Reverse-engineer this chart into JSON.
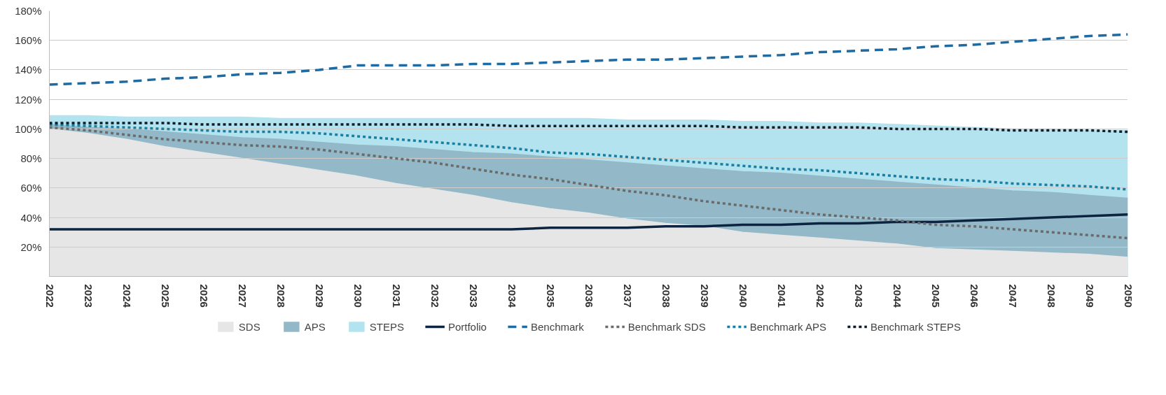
{
  "chart_data": {
    "type": "area",
    "x": [
      2022,
      2023,
      2024,
      2025,
      2026,
      2027,
      2028,
      2029,
      2030,
      2031,
      2032,
      2033,
      2034,
      2035,
      2036,
      2037,
      2038,
      2039,
      2040,
      2041,
      2042,
      2043,
      2044,
      2045,
      2046,
      2047,
      2048,
      2049,
      2050
    ],
    "xlim": [
      2022,
      2050
    ],
    "xticks": [
      2022,
      2023,
      2024,
      2025,
      2026,
      2027,
      2028,
      2029,
      2030,
      2031,
      2032,
      2033,
      2034,
      2035,
      2036,
      2037,
      2038,
      2039,
      2040,
      2041,
      2042,
      2043,
      2044,
      2045,
      2046,
      2047,
      2048,
      2049,
      2050
    ],
    "ylim": [
      0,
      180
    ],
    "yticks": [
      {
        "value": 20,
        "label": "20%"
      },
      {
        "value": 40,
        "label": "40%"
      },
      {
        "value": 60,
        "label": "60%"
      },
      {
        "value": 80,
        "label": "80%"
      },
      {
        "value": 100,
        "label": "100%"
      },
      {
        "value": 120,
        "label": "120%"
      },
      {
        "value": 140,
        "label": "140%"
      },
      {
        "value": 160,
        "label": "160%"
      },
      {
        "value": 180,
        "label": "180%"
      }
    ],
    "grid": "y",
    "legend": "bottom",
    "series": [
      {
        "name": "SDS",
        "color": "#e6e6e6",
        "values": [
          100,
          97,
          93,
          88,
          84,
          80,
          76,
          72,
          68,
          63,
          59,
          55,
          50,
          46,
          43,
          39,
          36,
          34,
          30,
          28,
          26,
          24,
          22,
          19,
          18,
          17,
          16,
          15,
          13
        ]
      },
      {
        "name": "APS",
        "color": "#93b8c8",
        "values": [
          103,
          101,
          100,
          98,
          96,
          94,
          93,
          91,
          89,
          88,
          86,
          84,
          83,
          81,
          79,
          77,
          75,
          73,
          71,
          70,
          68,
          66,
          64,
          62,
          60,
          58,
          57,
          55,
          53
        ]
      },
      {
        "name": "STEPS",
        "color": "#b3e3ee",
        "values": [
          109,
          109,
          108,
          108,
          108,
          108,
          107,
          107,
          107,
          107,
          107,
          107,
          107,
          107,
          107,
          106,
          106,
          106,
          105,
          105,
          104,
          104,
          103,
          102,
          101,
          100,
          100,
          99,
          99
        ]
      },
      {
        "name": "Portfolio",
        "type": "line",
        "color": "#0d2440",
        "line_style": "solid",
        "values": [
          32,
          32,
          32,
          32,
          32,
          32,
          32,
          32,
          32,
          32,
          32,
          32,
          32,
          33,
          33,
          33,
          34,
          34,
          35,
          35,
          36,
          36,
          37,
          37,
          38,
          39,
          40,
          41,
          42
        ]
      },
      {
        "name": "Benchmark",
        "type": "line",
        "color": "#1f6aa0",
        "line_style": "dashed",
        "values": [
          130,
          131,
          132,
          134,
          135,
          137,
          138,
          140,
          143,
          143,
          143,
          144,
          144,
          145,
          146,
          147,
          147,
          148,
          149,
          150,
          152,
          153,
          154,
          156,
          157,
          159,
          161,
          163,
          164
        ]
      },
      {
        "name": "Benchmark SDS",
        "type": "line",
        "color": "#6b6b6b",
        "line_style": "dotted",
        "values": [
          101,
          99,
          96,
          93,
          91,
          89,
          88,
          86,
          83,
          80,
          77,
          73,
          69,
          66,
          62,
          58,
          55,
          51,
          48,
          45,
          42,
          40,
          38,
          35,
          34,
          32,
          30,
          28,
          26
        ]
      },
      {
        "name": "Benchmark APS",
        "type": "line",
        "color": "#1a7fa0",
        "line_style": "dotted",
        "values": [
          103,
          102,
          101,
          100,
          99,
          98,
          98,
          97,
          95,
          93,
          91,
          89,
          87,
          84,
          83,
          81,
          79,
          77,
          75,
          73,
          72,
          70,
          68,
          66,
          65,
          63,
          62,
          61,
          59
        ]
      },
      {
        "name": "Benchmark STEPS",
        "type": "line",
        "color": "#0d1b2a",
        "line_style": "dotted",
        "values": [
          104,
          104,
          104,
          104,
          103,
          103,
          103,
          103,
          103,
          103,
          103,
          103,
          102,
          102,
          102,
          102,
          102,
          102,
          101,
          101,
          101,
          101,
          100,
          100,
          100,
          99,
          99,
          99,
          98
        ]
      }
    ]
  }
}
